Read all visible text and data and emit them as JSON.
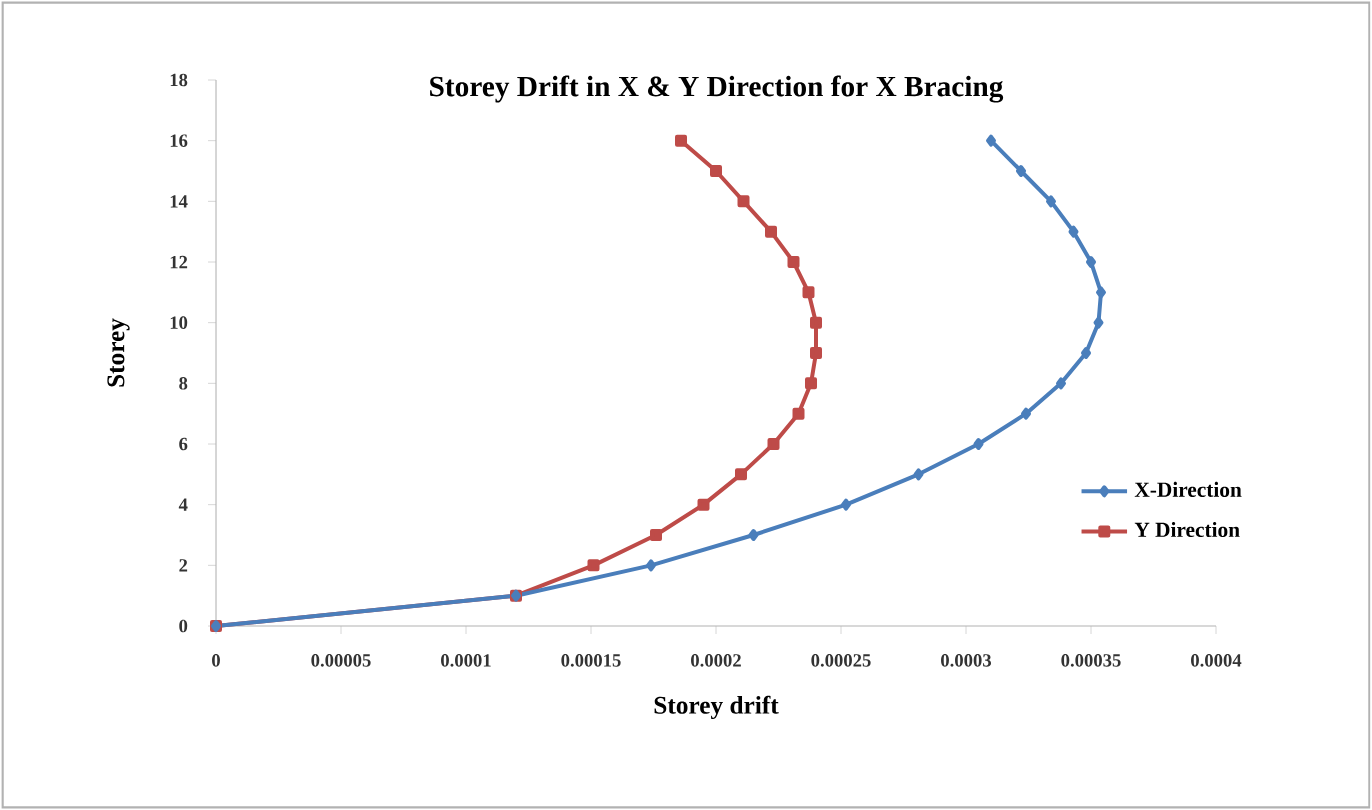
{
  "chart_data": {
    "type": "line",
    "title": "Storey Drift in X & Y Direction for X Bracing",
    "xlabel": "Storey drift",
    "ylabel": "Storey",
    "series": [
      {
        "name": "X-Direction",
        "color": "#4a7ebb",
        "marker": "diamond",
        "x": [
          0,
          0.00012,
          0.000174,
          0.000215,
          0.000252,
          0.000281,
          0.000305,
          0.000324,
          0.000338,
          0.000348,
          0.000353,
          0.000354,
          0.00035,
          0.000343,
          0.000334,
          0.000322,
          0.00031
        ],
        "values": [
          0,
          1,
          2,
          3,
          4,
          5,
          6,
          7,
          8,
          9,
          10,
          11,
          12,
          13,
          14,
          15,
          16
        ]
      },
      {
        "name": "Y Direction",
        "color": "#be4b48",
        "marker": "square",
        "x": [
          0,
          0.00012,
          0.000151,
          0.000176,
          0.000195,
          0.00021,
          0.000223,
          0.000233,
          0.000238,
          0.00024,
          0.00024,
          0.000237,
          0.000231,
          0.000222,
          0.000211,
          0.0002,
          0.000186
        ],
        "values": [
          0,
          1,
          2,
          3,
          4,
          5,
          6,
          7,
          8,
          9,
          10,
          11,
          12,
          13,
          14,
          15,
          16
        ]
      }
    ],
    "xlim": [
      0,
      0.0004
    ],
    "xticks": [
      0,
      {
        "value": 5e-05,
        "label": "0.00005"
      },
      0.0001,
      0.00015,
      0.0002,
      0.00025,
      0.0003,
      0.00035,
      0.0004
    ],
    "ylim": [
      0,
      18
    ],
    "yticks": [
      0,
      2,
      4,
      6,
      8,
      10,
      12,
      14,
      16,
      18
    ],
    "legend": "right",
    "grid": false,
    "line_style": "solid"
  }
}
